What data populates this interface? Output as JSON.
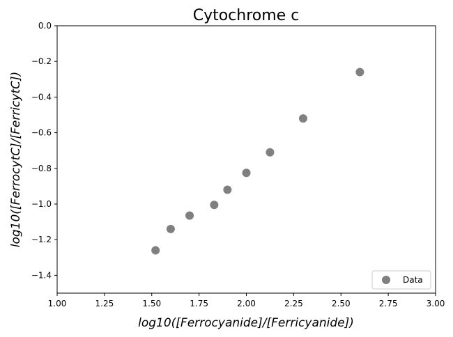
{
  "chart_data": {
    "type": "scatter",
    "title": "Cytochrome c",
    "xlabel": "log10([Ferrocyanide]/[Ferricyanide])",
    "ylabel": "log10([FerrocytC]/[FerricytC])",
    "xlim": [
      1.0,
      3.0
    ],
    "ylim": [
      -1.5,
      0.0
    ],
    "xticks": [
      1.0,
      1.25,
      1.5,
      1.75,
      2.0,
      2.25,
      2.5,
      2.75,
      3.0
    ],
    "xtick_labels": [
      "1.00",
      "1.25",
      "1.50",
      "1.75",
      "2.00",
      "2.25",
      "2.50",
      "2.75",
      "3.00"
    ],
    "yticks": [
      0.0,
      -0.2,
      -0.4,
      -0.6,
      -0.8,
      -1.0,
      -1.2,
      -1.4
    ],
    "ytick_labels": [
      "0.0",
      "−0.2",
      "−0.4",
      "−0.6",
      "−0.8",
      "−1.0",
      "−1.2",
      "−1.4"
    ],
    "grid": false,
    "legend_position": "bottom-right",
    "series": [
      {
        "name": "Data",
        "color": "#808080",
        "marker": "circle",
        "x": [
          1.52,
          1.6,
          1.7,
          1.83,
          1.9,
          2.0,
          2.125,
          2.3,
          2.6
        ],
        "y": [
          -1.26,
          -1.14,
          -1.065,
          -1.005,
          -0.92,
          -0.825,
          -0.71,
          -0.52,
          -0.26
        ]
      }
    ]
  }
}
